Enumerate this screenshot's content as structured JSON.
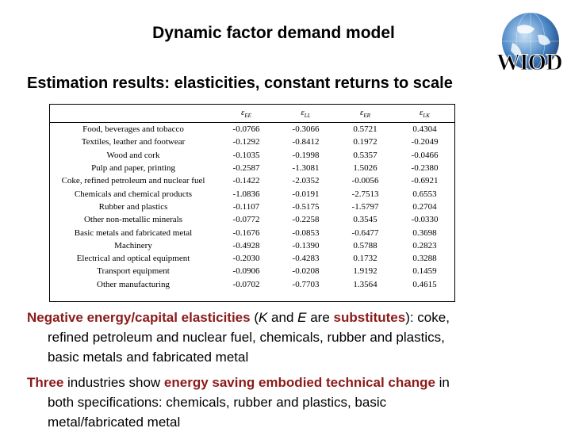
{
  "slide": {
    "title": "Dynamic factor demand model",
    "subtitle": "Estimation results: elasticities, constant returns to scale",
    "logo_text": "WIOD"
  },
  "table": {
    "headers": [
      "",
      "εEE",
      "εLL",
      "εER",
      "εLK"
    ],
    "rows": [
      {
        "industry": "Food, beverages and tobacco",
        "values": [
          "-0.0766",
          "-0.3066",
          "0.5721",
          "0.4304"
        ]
      },
      {
        "industry": "Textiles, leather and footwear",
        "values": [
          "-0.1292",
          "-0.8412",
          "0.1972",
          "-0.2049"
        ]
      },
      {
        "industry": "Wood and cork",
        "values": [
          "-0.1035",
          "-0.1998",
          "0.5357",
          "-0.0466"
        ]
      },
      {
        "industry": "Pulp and paper, printing",
        "values": [
          "-0.2587",
          "-1.3081",
          "1.5026",
          "-0.2380"
        ]
      },
      {
        "industry": "Coke, refined petroleum and nuclear fuel",
        "values": [
          "-0.1422",
          "-2.0352",
          "-0.0056",
          "-0.6921"
        ]
      },
      {
        "industry": "Chemicals and chemical products",
        "values": [
          "-1.0836",
          "-0.0191",
          "-2.7513",
          "0.6553"
        ]
      },
      {
        "industry": "Rubber and plastics",
        "values": [
          "-0.1107",
          "-0.5175",
          "-1.5797",
          "0.2704"
        ]
      },
      {
        "industry": "Other non-metallic minerals",
        "values": [
          "-0.0772",
          "-0.2258",
          "0.3545",
          "-0.0330"
        ]
      },
      {
        "industry": "Basic metals and fabricated metal",
        "values": [
          "-0.1676",
          "-0.0853",
          "-0.6477",
          "0.3698"
        ]
      },
      {
        "industry": "Machinery",
        "values": [
          "-0.4928",
          "-0.1390",
          "0.5788",
          "0.2823"
        ]
      },
      {
        "industry": "Electrical and optical equipment",
        "values": [
          "-0.2030",
          "-0.4283",
          "0.1732",
          "0.3288"
        ]
      },
      {
        "industry": "Transport equipment",
        "values": [
          "-0.0906",
          "-0.0208",
          "1.9192",
          "0.1459"
        ]
      },
      {
        "industry": "Other manufacturing",
        "values": [
          "-0.0702",
          "-0.7703",
          "1.3564",
          "0.4615"
        ]
      }
    ]
  },
  "para1": {
    "lead": "Negative energy/capital elasticities",
    "t1": " (",
    "k": "K",
    "t2": " and ",
    "e": "E",
    "t3": " are ",
    "subs": "substitutes",
    "t4": "): coke,",
    "line2": "refined petroleum and nuclear fuel, chemicals, rubber and plastics,",
    "line3": "basic metals and fabricated metal"
  },
  "para2": {
    "three": "Three",
    "t1": " industries show ",
    "change": "energy saving embodied technical change",
    "t2": " in",
    "line2": "both specifications: chemicals, rubber and plastics, basic",
    "line3": "metal/fabricated metal"
  },
  "colors": {
    "highlight": "#8b1a1a",
    "globe": "#2f5f9e"
  }
}
